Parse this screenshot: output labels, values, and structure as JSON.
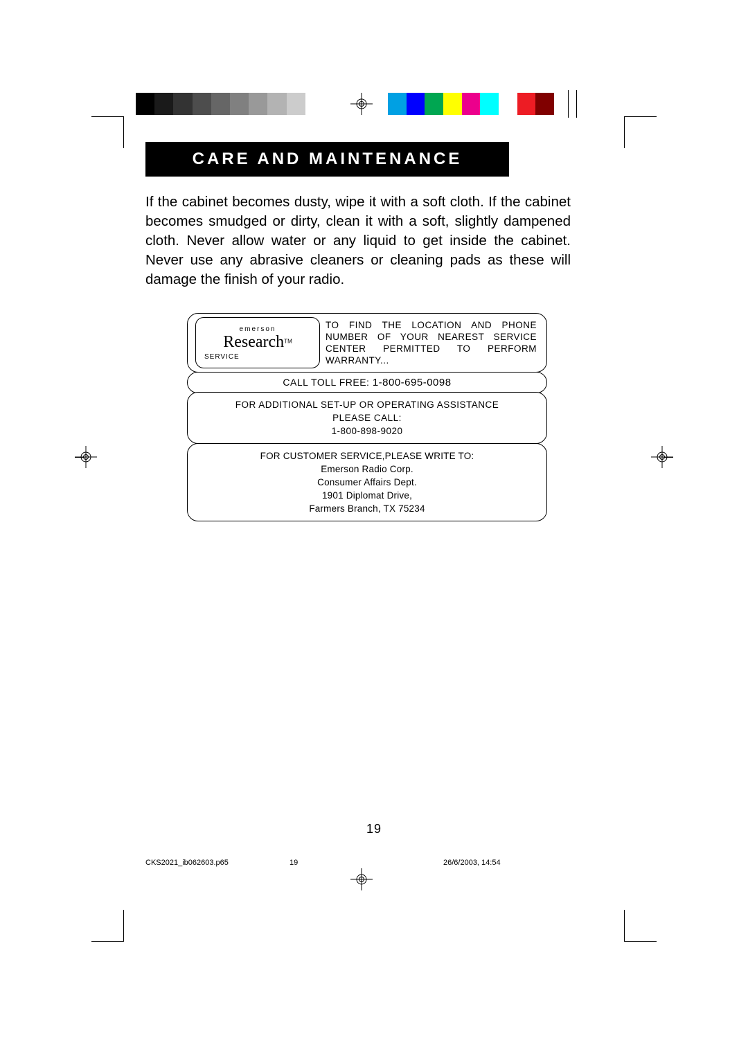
{
  "print_marks": {
    "gray_swatches": [
      "#000000",
      "#1a1a1a",
      "#333333",
      "#4d4d4d",
      "#666666",
      "#808080",
      "#999999",
      "#b3b3b3",
      "#cccccc",
      "#ffffff"
    ],
    "color_swatches": [
      "#00a0e3",
      "#0000ff",
      "#00a651",
      "#ffff00",
      "#ec008c",
      "#00ffff",
      "#ffffff",
      "#ed1c24",
      "#800000"
    ]
  },
  "heading": "CARE AND MAINTENANCE",
  "paragraph": "If the cabinet becomes dusty, wipe it with a soft cloth. If the cabinet becomes smudged or dirty, clean it with a soft, slightly dampened cloth. Never allow water or any liquid to get inside the cabinet. Never use any abrasive cleaners or cleaning pads as these will damage the finish of your radio.",
  "service_box": {
    "logo_top": "emerson",
    "logo_main": "Research",
    "logo_tm": "TM",
    "service_label": "SERVICE",
    "row1_text": "TO FIND THE LOCATION AND PHONE NUMBER OF YOUR NEAREST SERVICE CENTER PERMITTED TO PERFORM WARRANTY...",
    "row2_prefix": "CALL TOLL FREE: ",
    "row2_phone": "1-800-695-0098",
    "row3_line1": "FOR ADDITIONAL SET-UP OR OPERATING ASSISTANCE",
    "row3_line2": "PLEASE CALL:",
    "row3_line3": "1-800-898-9020",
    "row4_line1": "FOR CUSTOMER SERVICE,PLEASE WRITE TO:",
    "row4_line2": "Emerson Radio Corp.",
    "row4_line3": "Consumer Affairs Dept.",
    "row4_line4": "1901 Diplomat Drive,",
    "row4_line5": "Farmers Branch, TX 75234"
  },
  "footer": {
    "page_number": "19",
    "filename": "CKS2021_ib062603.p65",
    "foot_page": "19",
    "timestamp": "26/6/2003, 14:54"
  }
}
